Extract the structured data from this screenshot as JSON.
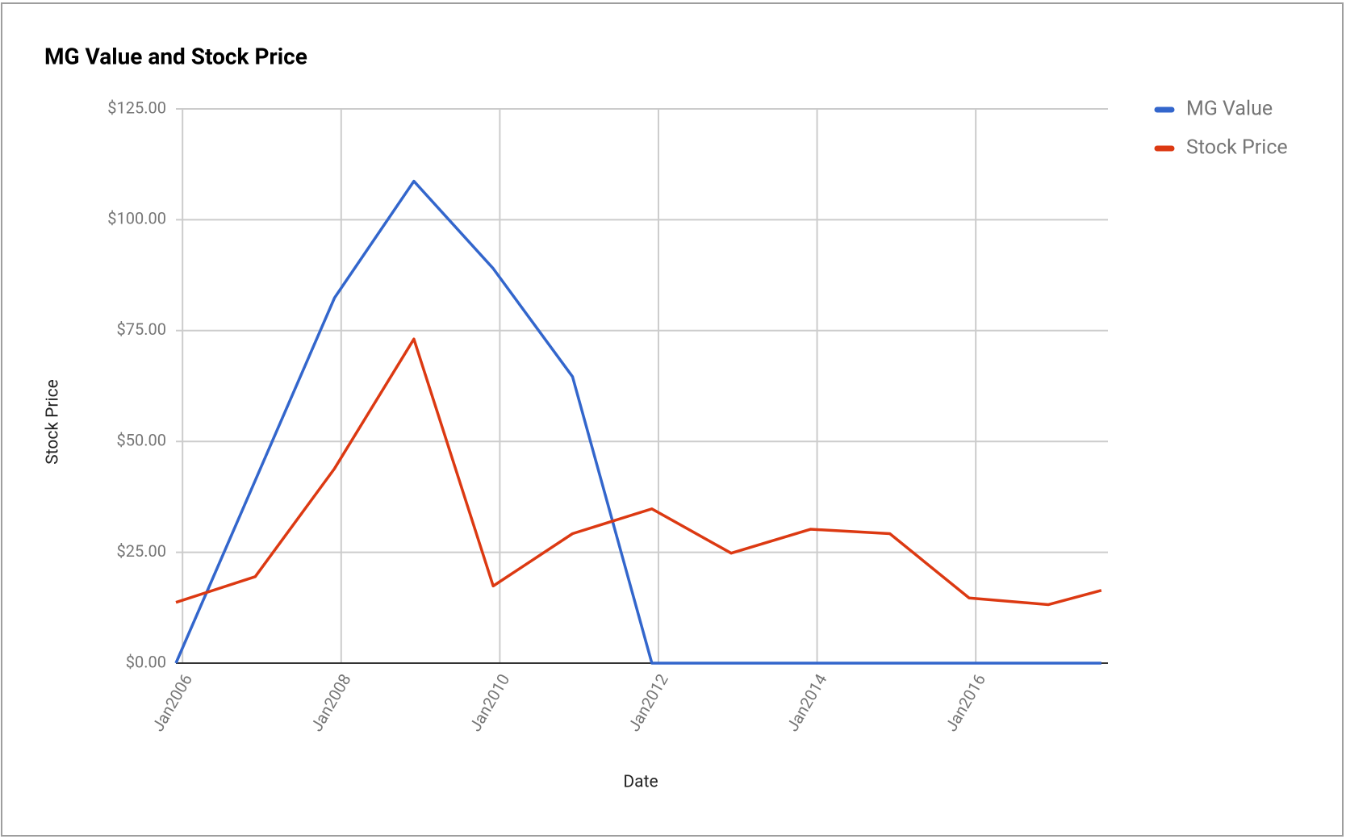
{
  "chart_data": {
    "type": "line",
    "title": "MG Value and Stock Price",
    "x_label": "Date",
    "y_label": "Stock Price",
    "x": [
      "2005-12",
      "2006-12",
      "2007-12",
      "2008-12",
      "2009-12",
      "2010-12",
      "2011-12",
      "2012-12",
      "2013-12",
      "2014-12",
      "2015-12",
      "2016-12",
      "2017-08"
    ],
    "series": [
      {
        "name": "MG Value",
        "color": "#3366cc",
        "values": [
          0,
          41.2,
          82.4,
          108.7,
          89,
          64.6,
          0,
          0,
          0,
          0,
          0,
          0,
          0
        ]
      },
      {
        "name": "Stock Price",
        "color": "#dc3912",
        "values": [
          13.7,
          19.5,
          43.9,
          73.1,
          17.4,
          29.2,
          34.8,
          24.8,
          30.2,
          29.2,
          14.7,
          13.2,
          16.4
        ]
      }
    ],
    "xlim": [
      "2005-12",
      "2017-09"
    ],
    "xticks": [
      {
        "value": "2006-01",
        "label": "Jan2006"
      },
      {
        "value": "2008-01",
        "label": "Jan2008"
      },
      {
        "value": "2010-01",
        "label": "Jan2010"
      },
      {
        "value": "2012-01",
        "label": "Jan2012"
      },
      {
        "value": "2014-01",
        "label": "Jan2014"
      },
      {
        "value": "2016-01",
        "label": "Jan2016"
      }
    ],
    "ylim": [
      0,
      125
    ],
    "yticks": [
      {
        "value": 0,
        "label": "$0.00"
      },
      {
        "value": 25,
        "label": "$25.00"
      },
      {
        "value": 50,
        "label": "$50.00"
      },
      {
        "value": 75,
        "label": "$75.00"
      },
      {
        "value": 100,
        "label": "$100.00"
      },
      {
        "value": 125,
        "label": "$125.00"
      }
    ],
    "grid": true,
    "legend": "right"
  }
}
